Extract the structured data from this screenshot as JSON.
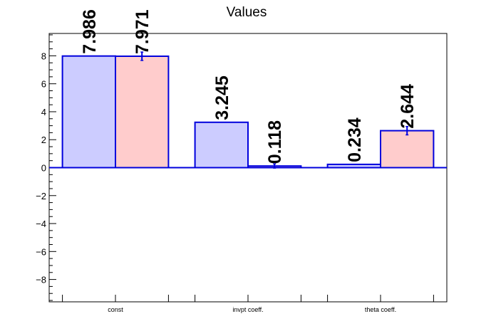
{
  "chart_data": {
    "type": "bar",
    "title": "Values",
    "xlabel": "",
    "ylabel": "",
    "categories": [
      "const",
      "invpt coeff.",
      "theta coeff."
    ],
    "ylim": [
      -9.6,
      9.6
    ],
    "yticks": [
      -8,
      -6,
      -4,
      -2,
      0,
      2,
      4,
      6,
      8
    ],
    "grid": false,
    "series": [
      {
        "values": [
          7.986,
          3.245,
          0.234
        ],
        "errors": [
          0,
          0,
          0
        ],
        "color": "#ccccff",
        "labels": [
          "7.986",
          "3.245",
          "0.234"
        ]
      },
      {
        "values": [
          7.971,
          0.118,
          2.644
        ],
        "errors": [
          0.3,
          0.15,
          0.3
        ],
        "color": "#ffcccc",
        "labels": [
          "7.971",
          "0.118",
          "2.644"
        ]
      }
    ],
    "bar_edge_color": "#0000dd"
  }
}
